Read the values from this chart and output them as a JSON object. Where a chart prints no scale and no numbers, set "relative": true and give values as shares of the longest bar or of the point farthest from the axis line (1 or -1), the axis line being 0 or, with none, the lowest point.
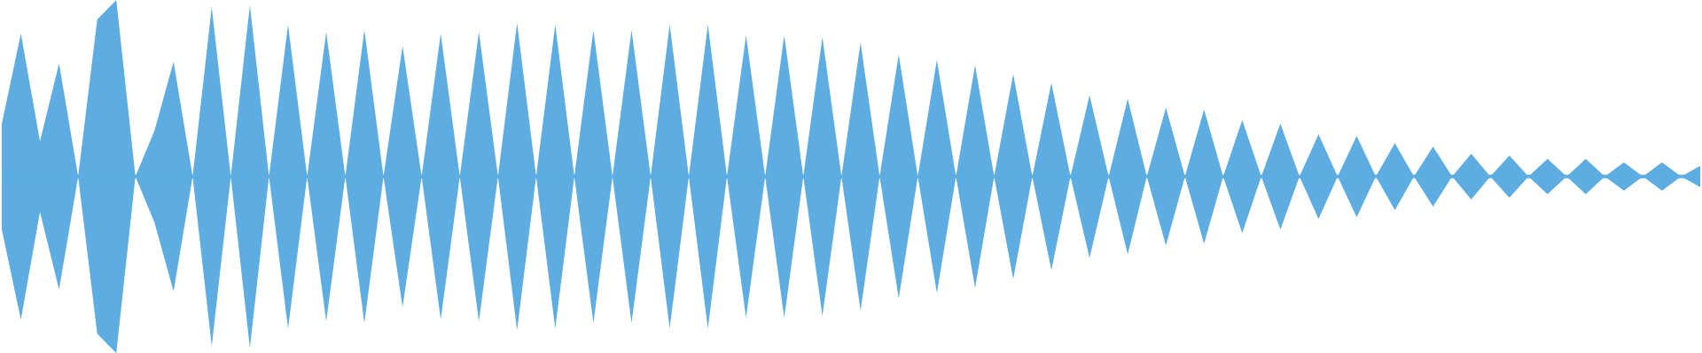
{
  "chart_data": {
    "type": "area",
    "relative": true,
    "ref_lines": [
      {
        "axis": "y",
        "value": 0,
        "color": "#5dade2"
      }
    ],
    "categories": [
      null,
      null,
      null,
      null,
      null,
      null,
      null,
      null,
      null,
      null,
      null,
      null,
      null,
      null,
      null,
      null,
      null,
      null,
      null,
      null,
      null,
      null,
      null,
      null,
      null,
      null,
      null,
      null,
      null,
      null,
      null,
      null,
      null,
      null,
      null,
      null,
      null,
      null,
      null,
      null,
      null,
      null,
      null,
      null,
      null,
      null,
      null,
      null,
      null,
      null,
      null,
      null,
      null,
      null,
      null,
      null,
      null,
      null,
      null,
      null,
      null,
      null,
      null,
      null,
      null,
      null,
      null,
      null,
      null,
      null,
      null,
      null,
      null,
      null,
      null,
      null,
      null,
      null,
      null,
      null,
      null,
      null,
      null,
      null,
      null,
      null,
      null,
      null,
      null,
      null
    ],
    "series": [
      {
        "color": "#5dade2",
        "values": [
          0.3,
          0.81,
          0.2,
          0.64,
          0,
          0.89,
          1,
          0,
          0.26,
          0.65,
          0,
          0.96,
          0,
          0.97,
          0,
          0.86,
          0,
          0.82,
          0,
          0.83,
          0,
          0.74,
          0,
          0.81,
          0,
          0.82,
          0,
          0.87,
          0,
          0.86,
          0,
          0.83,
          0,
          0.83,
          0,
          0.86,
          0,
          0.86,
          0,
          0.8,
          0,
          0.8,
          0,
          0.79,
          0,
          0.76,
          0,
          0.69,
          0,
          0.66,
          0,
          0.63,
          0,
          0.58,
          0,
          0.53,
          0,
          0.46,
          0,
          0.44,
          0,
          0.39,
          0,
          0.38,
          0,
          0.32,
          0,
          0.3,
          0,
          0.24,
          0,
          0.23,
          0,
          0.19,
          0,
          0.17,
          0,
          0.13,
          0,
          0.12,
          0,
          0.1,
          0,
          0.1,
          0,
          0.08,
          0,
          0.08,
          0,
          0.06
        ]
      },
      {
        "color": "#5dade2",
        "values": [
          -0.3,
          -0.81,
          -0.2,
          -0.64,
          0,
          -0.89,
          -1,
          0,
          -0.26,
          -0.65,
          0,
          -0.96,
          0,
          -0.97,
          0,
          -0.86,
          0,
          -0.82,
          0,
          -0.83,
          0,
          -0.74,
          0,
          -0.81,
          0,
          -0.82,
          0,
          -0.87,
          0,
          -0.86,
          0,
          -0.83,
          0,
          -0.83,
          0,
          -0.86,
          0,
          -0.86,
          0,
          -0.8,
          0,
          -0.8,
          0,
          -0.79,
          0,
          -0.76,
          0,
          -0.69,
          0,
          -0.66,
          0,
          -0.63,
          0,
          -0.58,
          0,
          -0.53,
          0,
          -0.46,
          0,
          -0.44,
          0,
          -0.39,
          0,
          -0.38,
          0,
          -0.32,
          0,
          -0.3,
          0,
          -0.24,
          0,
          -0.23,
          0,
          -0.19,
          0,
          -0.17,
          0,
          -0.13,
          0,
          -0.12,
          0,
          -0.1,
          0,
          -0.1,
          0,
          -0.08,
          0,
          -0.08,
          0,
          -0.06
        ]
      }
    ]
  }
}
